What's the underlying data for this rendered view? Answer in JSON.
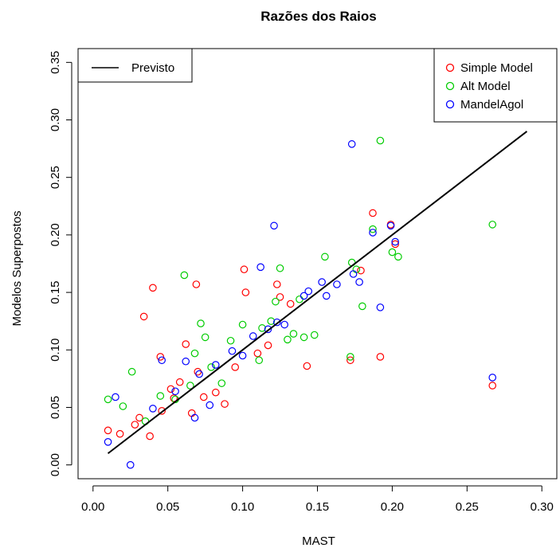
{
  "chart_data": {
    "type": "scatter",
    "title": "Razões dos Raios",
    "xlabel": "MAST",
    "ylabel": "Modelos Superpostos",
    "xlim": [
      -0.01,
      0.31
    ],
    "ylim": [
      -0.012,
      0.362
    ],
    "x_ticks": [
      0.0,
      0.05,
      0.1,
      0.15,
      0.2,
      0.25,
      0.3
    ],
    "x_tick_labels": [
      "0.00",
      "0.05",
      "0.10",
      "0.15",
      "0.20",
      "0.25",
      "0.30"
    ],
    "y_ticks": [
      0.0,
      0.05,
      0.1,
      0.15,
      0.2,
      0.25,
      0.3,
      0.35
    ],
    "y_tick_labels": [
      "0.00",
      "0.05",
      "0.10",
      "0.15",
      "0.20",
      "0.25",
      "0.30",
      "0.35"
    ],
    "grid": false,
    "legend_line": {
      "label": "Previsto",
      "position": "top-left"
    },
    "legend_points": {
      "position": "top-right"
    },
    "line": {
      "name": "Previsto",
      "color": "#000000",
      "x": [
        0.01,
        0.29
      ],
      "y": [
        0.01,
        0.29
      ]
    },
    "series": [
      {
        "name": "Simple Model",
        "color": "#ff0000",
        "x": [
          0.034,
          0.04,
          0.069,
          0.101,
          0.102,
          0.123,
          0.125,
          0.143,
          0.172,
          0.179,
          0.187,
          0.192,
          0.199,
          0.202,
          0.267,
          0.01,
          0.045,
          0.062,
          0.088,
          0.11,
          0.132,
          0.018,
          0.028,
          0.038,
          0.052,
          0.07,
          0.082,
          0.095,
          0.117,
          0.058,
          0.066,
          0.074,
          0.046,
          0.054,
          0.031
        ],
        "y": [
          0.129,
          0.154,
          0.157,
          0.17,
          0.15,
          0.157,
          0.146,
          0.086,
          0.091,
          0.169,
          0.219,
          0.094,
          0.209,
          0.192,
          0.069,
          0.03,
          0.094,
          0.105,
          0.053,
          0.097,
          0.14,
          0.027,
          0.035,
          0.025,
          0.066,
          0.081,
          0.063,
          0.085,
          0.104,
          0.072,
          0.045,
          0.059,
          0.047,
          0.058,
          0.041
        ]
      },
      {
        "name": "Alt Model",
        "color": "#00cc00",
        "x": [
          0.026,
          0.061,
          0.075,
          0.1,
          0.122,
          0.125,
          0.138,
          0.141,
          0.155,
          0.173,
          0.176,
          0.18,
          0.187,
          0.192,
          0.2,
          0.204,
          0.267,
          0.01,
          0.02,
          0.035,
          0.045,
          0.055,
          0.065,
          0.068,
          0.072,
          0.079,
          0.086,
          0.092,
          0.111,
          0.113,
          0.119,
          0.13,
          0.134,
          0.148,
          0.172
        ],
        "y": [
          0.081,
          0.165,
          0.111,
          0.122,
          0.142,
          0.171,
          0.144,
          0.111,
          0.181,
          0.176,
          0.17,
          0.138,
          0.205,
          0.282,
          0.185,
          0.181,
          0.209,
          0.057,
          0.051,
          0.038,
          0.06,
          0.057,
          0.069,
          0.097,
          0.123,
          0.085,
          0.071,
          0.108,
          0.091,
          0.119,
          0.125,
          0.109,
          0.114,
          0.113,
          0.094
        ]
      },
      {
        "name": "MandelAgol",
        "color": "#0000ff",
        "x": [
          0.025,
          0.015,
          0.046,
          0.068,
          0.078,
          0.112,
          0.121,
          0.123,
          0.141,
          0.153,
          0.156,
          0.173,
          0.174,
          0.178,
          0.187,
          0.192,
          0.199,
          0.202,
          0.267,
          0.01,
          0.04,
          0.055,
          0.062,
          0.071,
          0.082,
          0.093,
          0.1,
          0.107,
          0.117,
          0.128,
          0.144,
          0.163
        ],
        "y": [
          0.0,
          0.059,
          0.091,
          0.041,
          0.052,
          0.172,
          0.208,
          0.124,
          0.147,
          0.159,
          0.147,
          0.279,
          0.166,
          0.159,
          0.202,
          0.137,
          0.208,
          0.194,
          0.076,
          0.02,
          0.049,
          0.064,
          0.09,
          0.079,
          0.087,
          0.099,
          0.095,
          0.112,
          0.118,
          0.122,
          0.151,
          0.157
        ]
      }
    ]
  }
}
